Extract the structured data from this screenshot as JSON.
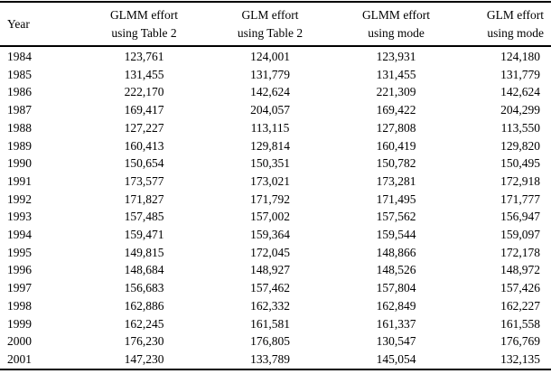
{
  "chart_data": {
    "type": "table",
    "title": "",
    "columns": [
      "Year",
      "GLMM effort\nusing Table 2",
      "GLM effort\nusing Table 2",
      "GLMM effort\nusing mode",
      "GLM effort\nusing mode"
    ],
    "rows": [
      [
        "1984",
        "123,761",
        "124,001",
        "123,931",
        "124,180"
      ],
      [
        "1985",
        "131,455",
        "131,779",
        "131,455",
        "131,779"
      ],
      [
        "1986",
        "222,170",
        "142,624",
        "221,309",
        "142,624"
      ],
      [
        "1987",
        "169,417",
        "204,057",
        "169,422",
        "204,299"
      ],
      [
        "1988",
        "127,227",
        "113,115",
        "127,808",
        "113,550"
      ],
      [
        "1989",
        "160,413",
        "129,814",
        "160,419",
        "129,820"
      ],
      [
        "1990",
        "150,654",
        "150,351",
        "150,782",
        "150,495"
      ],
      [
        "1991",
        "173,577",
        "173,021",
        "173,281",
        "172,918"
      ],
      [
        "1992",
        "171,827",
        "171,792",
        "171,495",
        "171,777"
      ],
      [
        "1993",
        "157,485",
        "157,002",
        "157,562",
        "156,947"
      ],
      [
        "1994",
        "159,471",
        "159,364",
        "159,544",
        "159,097"
      ],
      [
        "1995",
        "149,815",
        "172,045",
        "148,866",
        "172,178"
      ],
      [
        "1996",
        "148,684",
        "148,927",
        "148,526",
        "148,972"
      ],
      [
        "1997",
        "156,683",
        "157,462",
        "157,804",
        "157,426"
      ],
      [
        "1998",
        "162,886",
        "162,332",
        "162,849",
        "162,227"
      ],
      [
        "1999",
        "162,245",
        "161,581",
        "161,337",
        "161,558"
      ],
      [
        "2000",
        "176,230",
        "176,805",
        "130,547",
        "176,769"
      ],
      [
        "2001",
        "147,230",
        "133,789",
        "145,054",
        "132,135"
      ]
    ],
    "text_color": "#000000",
    "rule_color": "#000000"
  }
}
